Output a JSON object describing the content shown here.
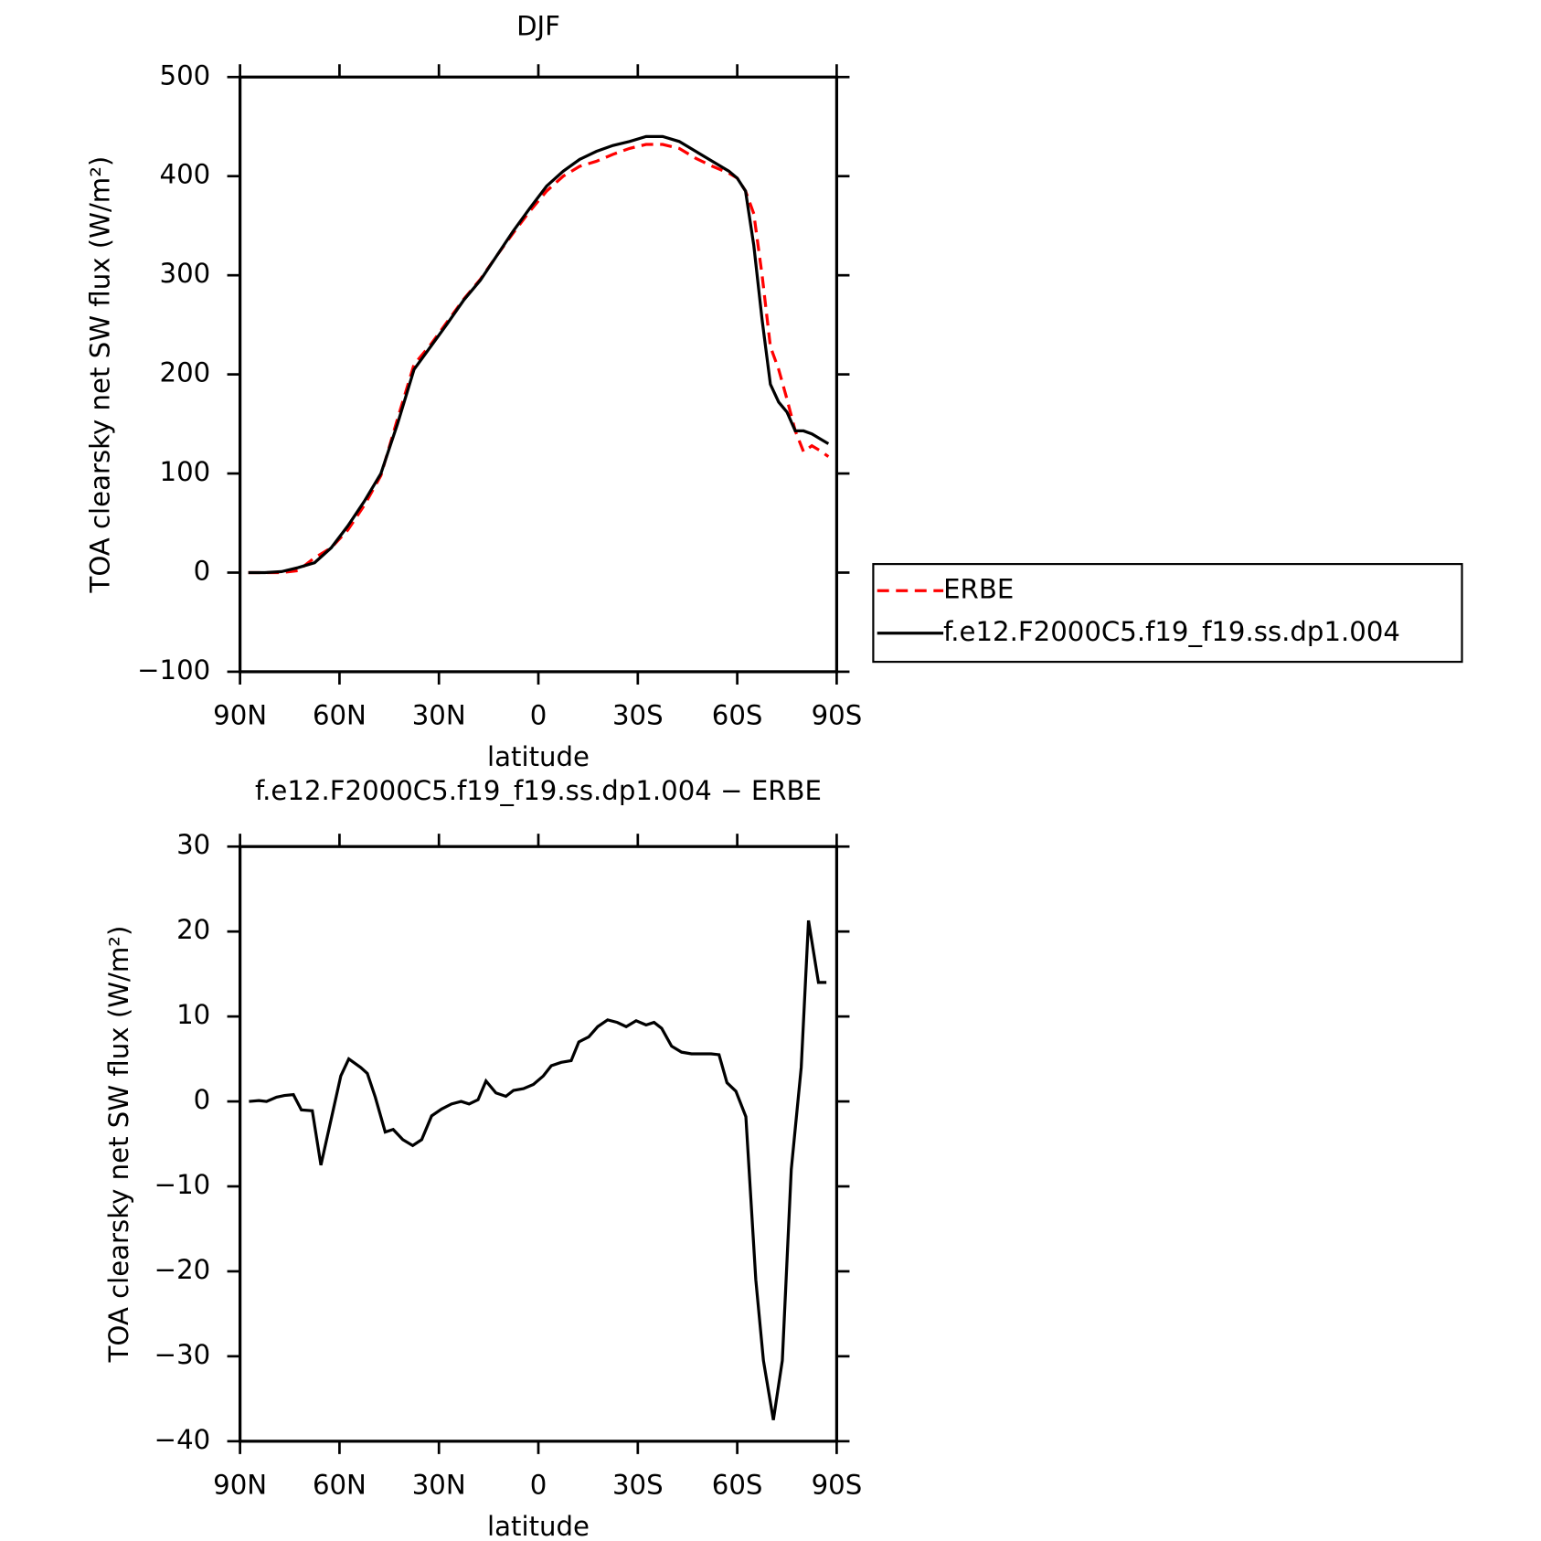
{
  "chart_data": [
    {
      "type": "line",
      "title": "DJF",
      "xlabel": "latitude",
      "ylabel": "TOA clearsky net SW flux (W/m²)",
      "x": [
        87.5,
        82.5,
        77.5,
        72.5,
        67.5,
        62.5,
        57.5,
        52.5,
        47.5,
        42.5,
        37.5,
        32.5,
        27.5,
        22.5,
        17.5,
        12.5,
        7.5,
        2.5,
        -2.5,
        -7.5,
        -12.5,
        -17.5,
        -22.5,
        -27.5,
        -32.5,
        -37.5,
        -42.5,
        -47.5,
        -52.5,
        -57.5,
        -60,
        -62.5,
        -65,
        -67.5,
        -70,
        -72.5,
        -75,
        -77.5,
        -80,
        -82.5,
        -85,
        -87.5
      ],
      "series": [
        {
          "name": "ERBE",
          "color": "#ff0000",
          "style": "dashed",
          "values": [
            0,
            0,
            0,
            2,
            15,
            25,
            43,
            68,
            98,
            155,
            210,
            230,
            253,
            276,
            296,
            320,
            343,
            365,
            385,
            400,
            410,
            415,
            422,
            428,
            432,
            432,
            428,
            418,
            410,
            403,
            398,
            385,
            362,
            300,
            228,
            205,
            175,
            143,
            122,
            128,
            123,
            117
          ]
        },
        {
          "name": "f.e12.F2000C5.f19_f19.ss.dp1.004",
          "color": "#000000",
          "style": "solid",
          "values": [
            0,
            0,
            1,
            5,
            10,
            25,
            47,
            72,
            100,
            150,
            205,
            228,
            251,
            275,
            295,
            320,
            345,
            368,
            390,
            405,
            417,
            425,
            431,
            435,
            440,
            440,
            435,
            425,
            415,
            405,
            398,
            385,
            330,
            255,
            190,
            172,
            162,
            143,
            143,
            140,
            135,
            130
          ]
        }
      ],
      "xlim": [
        90,
        -90
      ],
      "xticks": [
        {
          "value": 90,
          "label": "90N"
        },
        {
          "value": 60,
          "label": "60N"
        },
        {
          "value": 30,
          "label": "30N"
        },
        0,
        {
          "value": -30,
          "label": "30S"
        },
        {
          "value": -60,
          "label": "60S"
        },
        {
          "value": -90,
          "label": "90S"
        }
      ],
      "ylim": [
        -100,
        500
      ],
      "yticks": [
        {
          "value": -100,
          "label": "−100"
        },
        0,
        100,
        200,
        300,
        400,
        500
      ],
      "legend": "right"
    },
    {
      "type": "line",
      "title": "f.e12.F2000C5.f19_f19.ss.dp1.004 − ERBE",
      "xlabel": "latitude",
      "ylabel": "TOA clearsky net SW flux (W/m²)",
      "x": [
        87.3,
        84.3,
        82.0,
        79.0,
        76.6,
        73.9,
        71.5,
        68.2,
        65.6,
        59.6,
        57.2,
        53.6,
        51.6,
        49.2,
        46.2,
        43.8,
        40.9,
        37.9,
        35.2,
        32.2,
        29.2,
        26.2,
        23.3,
        20.9,
        18.2,
        15.8,
        12.8,
        9.8,
        7.5,
        4.5,
        1.5,
        -1.5,
        -3.9,
        -6.9,
        -9.9,
        -12.2,
        -15.2,
        -17.9,
        -20.9,
        -23.8,
        -26.5,
        -29.5,
        -32.5,
        -34.9,
        -37.2,
        -40.2,
        -43.2,
        -46.2,
        -49.2,
        -52.1,
        -54.5,
        -56.9,
        -59.6,
        -62.6,
        -65.6,
        -67.9,
        -70.9,
        -73.6,
        -76.3,
        -79.3,
        -81.5,
        -84.5,
        -86.9
      ],
      "series": [
        {
          "color": "#000000",
          "style": "solid",
          "values": [
            0,
            0.1,
            0,
            0.5,
            0.7,
            0.8,
            -1,
            -1.1,
            -7.5,
            3,
            5,
            4,
            3.3,
            0.5,
            -3.6,
            -3.3,
            -4.5,
            -5.2,
            -4.5,
            -1.7,
            -0.9,
            -0.3,
            0,
            -0.3,
            0.2,
            2.4,
            1,
            0.6,
            1.3,
            1.5,
            2,
            3,
            4.2,
            4.6,
            4.8,
            7,
            7.6,
            8.8,
            9.6,
            9.3,
            8.8,
            9.5,
            9,
            9.3,
            8.6,
            6.5,
            5.8,
            5.6,
            5.6,
            5.6,
            5.5,
            2.2,
            1.2,
            -1.8,
            -21,
            -30.5,
            -37.5,
            -30.5,
            -8,
            4,
            21.3,
            14,
            14
          ]
        }
      ],
      "xlim": [
        90,
        -90
      ],
      "xticks": [
        {
          "value": 90,
          "label": "90N"
        },
        {
          "value": 60,
          "label": "60N"
        },
        {
          "value": 30,
          "label": "30N"
        },
        0,
        {
          "value": -30,
          "label": "30S"
        },
        {
          "value": -60,
          "label": "60S"
        },
        {
          "value": -90,
          "label": "90S"
        }
      ],
      "ylim": [
        -40,
        30
      ],
      "yticks": [
        {
          "value": -40,
          "label": "−40"
        },
        {
          "value": -30,
          "label": "−30"
        },
        {
          "value": -20,
          "label": "−20"
        },
        {
          "value": -10,
          "label": "−10"
        },
        0,
        10,
        20,
        30
      ]
    }
  ]
}
